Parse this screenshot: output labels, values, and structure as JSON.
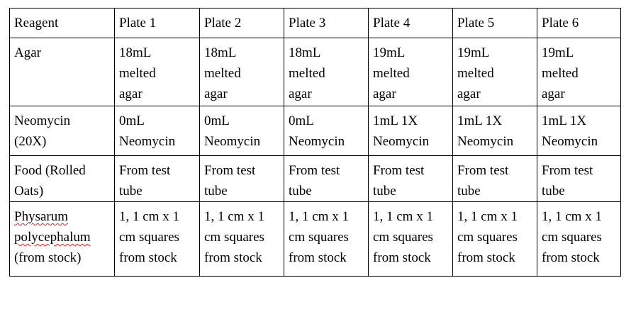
{
  "table": {
    "header": [
      "Reagent",
      "Plate 1",
      "Plate 2",
      "Plate 3",
      "Plate 4",
      "Plate 5",
      "Plate 6"
    ],
    "rows": [
      {
        "reagent": "Agar",
        "cells": [
          "18mL\nmelted\nagar",
          "18mL\nmelted\nagar",
          "18mL\nmelted\nagar",
          "19mL\nmelted\nagar",
          "19mL\nmelted\nagar",
          "19mL\nmelted\nagar"
        ]
      },
      {
        "reagent": "Neomycin\n(20X)",
        "cells": [
          "0mL\nNeomycin",
          "0mL\nNeomycin",
          "0mL\nNeomycin",
          "1mL 1X\nNeomycin",
          "1mL 1X\nNeomycin",
          "1mL 1X\nNeomycin"
        ]
      },
      {
        "reagent": "Food (Rolled\nOats)",
        "cells": [
          "From test\ntube",
          "From test\ntube",
          "From test\ntube",
          "From test\ntube",
          "From test\ntube",
          "From test\ntube"
        ]
      },
      {
        "reagent_line1": "Physarum",
        "reagent_line2": "polycephalum",
        "reagent_line3": "(from stock)",
        "cells": [
          "1, 1 cm x 1\ncm squares\nfrom stock",
          "1, 1 cm x 1\ncm squares\nfrom stock",
          "1, 1 cm x 1\ncm squares\nfrom stock",
          "1, 1 cm x 1\ncm squares\nfrom stock",
          "1, 1 cm x 1\ncm squares\nfrom stock",
          "1, 1 cm x 1\ncm squares\nfrom stock"
        ]
      }
    ]
  }
}
